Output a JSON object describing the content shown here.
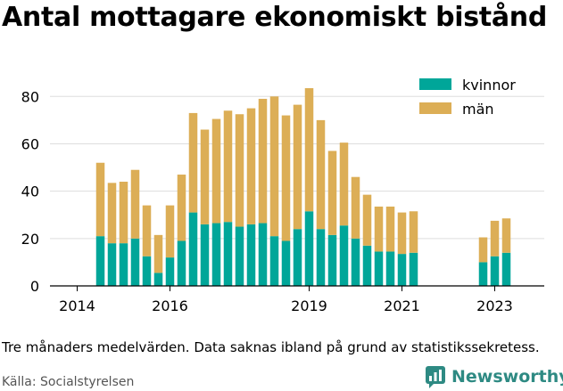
{
  "title": "Antal mottagare ekonomiskt bistånd",
  "note": "Tre månaders medelvärden. Data saknas ibland på grund av statistikssekretess.",
  "source": "Källa: Socialstyrelsen",
  "brand": "Newsworthy",
  "colors": {
    "kvinnor": "#00a699",
    "man": "#dcae56",
    "axis": "#000000",
    "grid": "#dddddd",
    "brand": "#2e8a83"
  },
  "chart_data": {
    "type": "bar",
    "stacked": true,
    "x_ticks": [
      "2014",
      "2016",
      "2019",
      "2021",
      "2023"
    ],
    "y_ticks": [
      0,
      20,
      40,
      60,
      80
    ],
    "ylim": [
      0,
      85
    ],
    "grid": true,
    "legend_position": "top-right",
    "series": [
      {
        "name": "kvinnor",
        "color": "#00a699",
        "points": [
          {
            "x": "2014-07",
            "y": 21
          },
          {
            "x": "2014-10",
            "y": 18
          },
          {
            "x": "2015-01",
            "y": 18
          },
          {
            "x": "2015-04",
            "y": 20
          },
          {
            "x": "2015-07",
            "y": 12.5
          },
          {
            "x": "2015-10",
            "y": 5.5
          },
          {
            "x": "2016-01",
            "y": 12
          },
          {
            "x": "2016-04",
            "y": 19
          },
          {
            "x": "2016-07",
            "y": 31
          },
          {
            "x": "2016-10",
            "y": 26
          },
          {
            "x": "2017-01",
            "y": 26.5
          },
          {
            "x": "2017-04",
            "y": 27
          },
          {
            "x": "2017-07",
            "y": 25
          },
          {
            "x": "2017-10",
            "y": 26
          },
          {
            "x": "2018-01",
            "y": 26.5
          },
          {
            "x": "2018-04",
            "y": 21
          },
          {
            "x": "2018-07",
            "y": 19
          },
          {
            "x": "2018-10",
            "y": 24
          },
          {
            "x": "2019-01",
            "y": 31.5
          },
          {
            "x": "2019-04",
            "y": 24
          },
          {
            "x": "2019-07",
            "y": 21.5
          },
          {
            "x": "2019-10",
            "y": 25.5
          },
          {
            "x": "2020-01",
            "y": 20
          },
          {
            "x": "2020-04",
            "y": 17
          },
          {
            "x": "2020-07",
            "y": 14.5
          },
          {
            "x": "2020-10",
            "y": 14.5
          },
          {
            "x": "2021-01",
            "y": 13.5
          },
          {
            "x": "2021-04",
            "y": 14
          },
          {
            "x": "2022-10",
            "y": 10
          },
          {
            "x": "2023-01",
            "y": 12.5
          },
          {
            "x": "2023-04",
            "y": 14
          }
        ]
      },
      {
        "name": "män",
        "color": "#dcae56",
        "points": [
          {
            "x": "2014-07",
            "y": 31
          },
          {
            "x": "2014-10",
            "y": 25.5
          },
          {
            "x": "2015-01",
            "y": 26
          },
          {
            "x": "2015-04",
            "y": 29
          },
          {
            "x": "2015-07",
            "y": 21.5
          },
          {
            "x": "2015-10",
            "y": 16
          },
          {
            "x": "2016-01",
            "y": 22
          },
          {
            "x": "2016-04",
            "y": 28
          },
          {
            "x": "2016-07",
            "y": 42
          },
          {
            "x": "2016-10",
            "y": 40
          },
          {
            "x": "2017-01",
            "y": 44
          },
          {
            "x": "2017-04",
            "y": 47
          },
          {
            "x": "2017-07",
            "y": 47.5
          },
          {
            "x": "2017-10",
            "y": 49
          },
          {
            "x": "2018-01",
            "y": 52.5
          },
          {
            "x": "2018-04",
            "y": 59
          },
          {
            "x": "2018-07",
            "y": 53
          },
          {
            "x": "2018-10",
            "y": 52.5
          },
          {
            "x": "2019-01",
            "y": 52
          },
          {
            "x": "2019-04",
            "y": 46
          },
          {
            "x": "2019-07",
            "y": 35.5
          },
          {
            "x": "2019-10",
            "y": 35
          },
          {
            "x": "2020-01",
            "y": 26
          },
          {
            "x": "2020-04",
            "y": 21.5
          },
          {
            "x": "2020-07",
            "y": 19
          },
          {
            "x": "2020-10",
            "y": 19
          },
          {
            "x": "2021-01",
            "y": 17.5
          },
          {
            "x": "2021-04",
            "y": 17.5
          },
          {
            "x": "2022-10",
            "y": 10.5
          },
          {
            "x": "2023-01",
            "y": 15
          },
          {
            "x": "2023-04",
            "y": 14.5
          }
        ]
      }
    ]
  }
}
